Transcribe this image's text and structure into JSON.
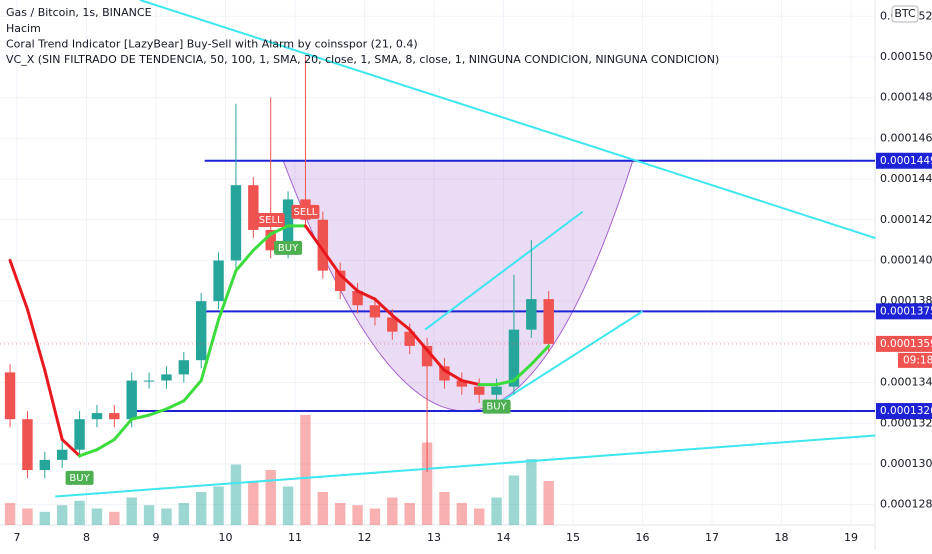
{
  "chart_data": {
    "type": "candlestick",
    "title": "Gas / Bitcoin, 1s, BINANCE",
    "legend_lines": [
      "Hacim",
      "Coral Trend Indicator [LazyBear] Buy-Sell with Alarm by coinsspor (21, 0.4)",
      "VC_X (SIN FILTRADO DE TENDENCIA, 50, 100, 1, SMA, 20, close, 1, SMA, 8, close, 1, NINGUNA CONDICION, NINGUNA CONDICION)"
    ],
    "currency": "BTC",
    "x": [
      6.9,
      7.15,
      7.4,
      7.65,
      7.9,
      8.15,
      8.4,
      8.65,
      8.9,
      9.15,
      9.4,
      9.65,
      9.9,
      10.15,
      10.4,
      10.65,
      10.9,
      11.15,
      11.4,
      11.65,
      11.9,
      12.15,
      12.4,
      12.65,
      12.9,
      13.15,
      13.4,
      13.65,
      13.9,
      14.15,
      14.4,
      14.65
    ],
    "open": [
      0.0001345,
      0.0001322,
      0.0001297,
      0.0001302,
      0.0001307,
      0.0001322,
      0.0001325,
      0.0001322,
      0.0001341,
      0.0001341,
      0.0001344,
      0.0001351,
      0.000138,
      0.00014,
      0.0001437,
      0.0001415,
      0.0001405,
      0.000143,
      0.000142,
      0.0001395,
      0.0001385,
      0.0001378,
      0.0001372,
      0.0001365,
      0.0001358,
      0.0001348,
      0.0001341,
      0.0001338,
      0.0001334,
      0.0001338,
      0.0001366,
      0.0001381
    ],
    "high": [
      0.0001349,
      0.0001326,
      0.0001306,
      0.0001311,
      0.0001326,
      0.0001329,
      0.0001329,
      0.0001345,
      0.0001345,
      0.0001348,
      0.0001355,
      0.0001384,
      0.0001404,
      0.0001477,
      0.0001441,
      0.000148,
      0.0001434,
      0.00015,
      0.0001424,
      0.0001399,
      0.0001389,
      0.0001382,
      0.0001376,
      0.0001369,
      0.0001362,
      0.0001352,
      0.0001345,
      0.0001342,
      0.0001342,
      0.0001393,
      0.000141,
      0.0001385
    ],
    "low": [
      0.0001318,
      0.0001293,
      0.0001293,
      0.0001298,
      0.0001303,
      0.0001318,
      0.0001318,
      0.0001318,
      0.0001337,
      0.0001337,
      0.000134,
      0.0001347,
      0.0001376,
      0.0001396,
      0.0001411,
      0.0001401,
      0.0001401,
      0.0001416,
      0.0001391,
      0.0001381,
      0.0001374,
      0.0001368,
      0.0001361,
      0.0001354,
      0.0001296,
      0.0001337,
      0.0001334,
      0.000133,
      0.000133,
      0.0001334,
      0.0001362,
      0.0001355
    ],
    "close": [
      0.0001322,
      0.0001297,
      0.0001302,
      0.0001307,
      0.0001322,
      0.0001325,
      0.0001322,
      0.0001341,
      0.0001341,
      0.0001344,
      0.0001351,
      0.000138,
      0.00014,
      0.0001437,
      0.0001415,
      0.0001405,
      0.000143,
      0.000142,
      0.0001395,
      0.0001385,
      0.0001378,
      0.0001372,
      0.0001365,
      0.0001358,
      0.0001348,
      0.0001341,
      0.0001338,
      0.0001334,
      0.0001338,
      0.0001366,
      0.0001381,
      0.0001359
    ],
    "volume": [
      20,
      15,
      12,
      18,
      22,
      15,
      12,
      25,
      18,
      15,
      20,
      30,
      35,
      55,
      40,
      50,
      35,
      100,
      30,
      20,
      18,
      15,
      25,
      20,
      75,
      30,
      20,
      15,
      25,
      45,
      60,
      40
    ],
    "coral": [
      0.00014,
      0.0001376,
      0.0001346,
      0.0001312,
      0.0001304,
      0.0001307,
      0.0001312,
      0.0001322,
      0.0001324,
      0.0001327,
      0.0001331,
      0.0001341,
      0.0001371,
      0.0001395,
      0.0001405,
      0.0001413,
      0.0001417,
      0.0001417,
      0.0001405,
      0.0001393,
      0.0001385,
      0.0001381,
      0.0001373,
      0.0001366,
      0.0001356,
      0.0001346,
      0.0001341,
      0.0001339,
      0.0001339,
      0.0001341,
      0.0001349,
      0.0001358
    ],
    "colors": {
      "up": "#26a69a",
      "down": "#ef5350",
      "coral_up": "#3ddc3d",
      "coral_down": "#e8191e",
      "level": "#1e22d6",
      "trend": "#3ee6f0",
      "cup": "#a45fd0"
    },
    "signals": [
      {
        "text": "SELL",
        "at": 15
      },
      {
        "text": "BUY",
        "at": 16
      },
      {
        "text": "SELL",
        "at": 17
      },
      {
        "text": "BUY",
        "at": 4
      },
      {
        "text": "BUY",
        "at": 28
      }
    ],
    "levels": [
      {
        "value": 0.0001449,
        "from": 9.7
      },
      {
        "value": 0.0001375,
        "from": 9.63
      },
      {
        "value": 0.0001326,
        "from": 8.7
      }
    ],
    "last_price": {
      "value": 0.0001359,
      "label": "09:18"
    },
    "trendlines": [
      [
        [
          8.77,
          0.0001528
        ],
        [
          19.35,
          0.0001411
        ]
      ],
      [
        [
          7.55,
          0.0001284
        ],
        [
          19.35,
          0.0001314
        ]
      ],
      [
        [
          12.87,
          0.0001366
        ],
        [
          15.14,
          0.0001424
        ]
      ],
      [
        [
          13.8,
          0.0001327
        ],
        [
          16.0,
          0.0001375
        ]
      ]
    ],
    "cup": {
      "left": [
        10.83,
        0.0001449
      ],
      "bottom": [
        13.45,
        0.0001326
      ],
      "right": [
        15.86,
        0.0001449
      ]
    },
    "xlim": [
      6.755,
      19.345
    ],
    "xticks": [
      7,
      8,
      9,
      10,
      11,
      12,
      13,
      14,
      15,
      16,
      17,
      18,
      19
    ],
    "ylim": [
      0.000127,
      0.0001528
    ],
    "yticks": [
      {
        "value": 0.000128,
        "label": "0.0001280"
      },
      {
        "value": 0.00013,
        "label": "0.0001300"
      },
      {
        "value": 0.000132,
        "label": "0.0001320"
      },
      {
        "value": 0.000134,
        "label": "0.0001340"
      },
      {
        "value": 0.000136,
        "label": "0.0001360"
      },
      {
        "value": 0.000138,
        "label": "0.0001380"
      },
      {
        "value": 0.00014,
        "label": "0.0001400"
      },
      {
        "value": 0.000142,
        "label": "0.0001420"
      },
      {
        "value": 0.000144,
        "label": "0.0001440"
      },
      {
        "value": 0.000146,
        "label": "0.0001460"
      },
      {
        "value": 0.000148,
        "label": "0.0001480"
      },
      {
        "value": 0.00015,
        "label": "0.0001500"
      },
      {
        "value": 0.000152,
        "label": "0.0001520"
      }
    ]
  }
}
